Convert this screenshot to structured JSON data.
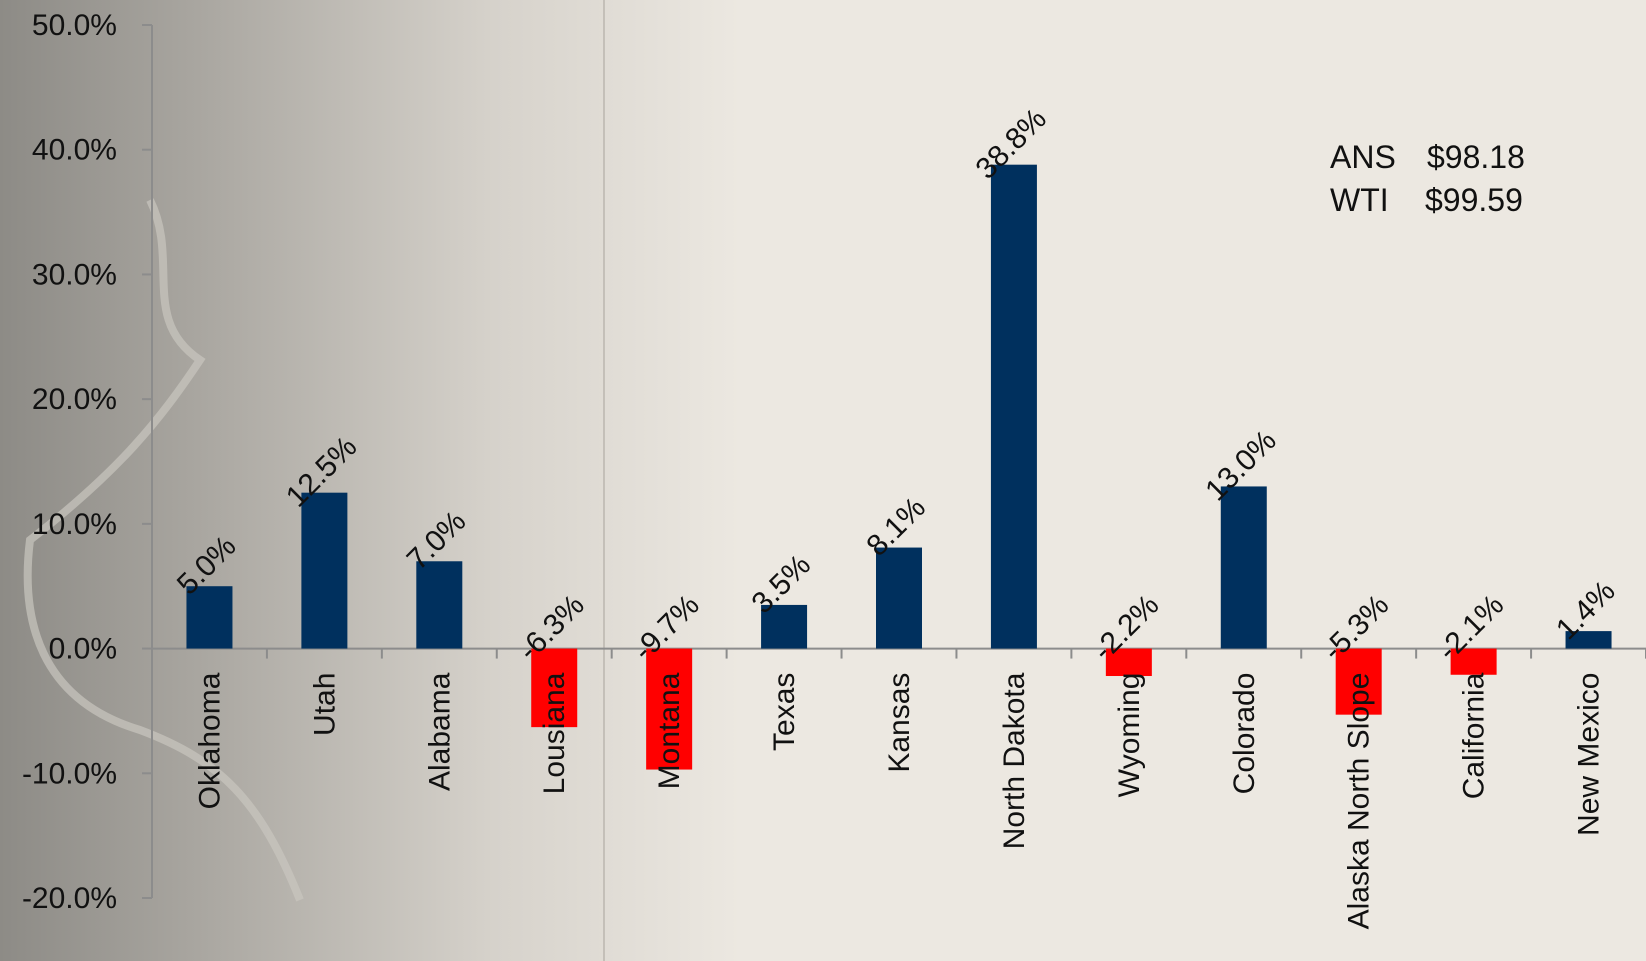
{
  "chart_data": {
    "type": "bar",
    "title": "",
    "xlabel": "",
    "ylabel": "",
    "ylim": [
      -20,
      50
    ],
    "yticks": [
      "50.0%",
      "40.0%",
      "30.0%",
      "20.0%",
      "10.0%",
      "0.0%",
      "-10.0%",
      "-20.0%"
    ],
    "ytick_values": [
      50,
      40,
      30,
      20,
      10,
      0,
      -10,
      -20
    ],
    "categories": [
      "Oklahoma",
      "Utah",
      "Alabama",
      "Lousiana",
      "Montana",
      "Texas",
      "Kansas",
      "North Dakota",
      "Wyoming",
      "Colorado",
      "Alaska North Slope",
      "California",
      "New Mexico"
    ],
    "values": [
      5.0,
      12.5,
      7.0,
      -6.3,
      -9.7,
      3.5,
      8.1,
      38.8,
      -2.2,
      13.0,
      -5.3,
      -2.1,
      1.4
    ],
    "data_labels": [
      "5.0%",
      "12.5%",
      "7.0%",
      "-6.3%",
      "-9.7%",
      "3.5%",
      "8.1%",
      "38.8%",
      "-2.2%",
      "13.0%",
      "-5.3%",
      "-2.1%",
      "1.4%"
    ],
    "grid": false,
    "colors": {
      "positive": "#00305e",
      "negative": "#ff0000",
      "axis": "#8c8c8c"
    }
  },
  "legend": {
    "position": "top-right",
    "rows": [
      {
        "name": "ANS",
        "value": "$98.18"
      },
      {
        "name": "WTI",
        "value": "$99.59"
      }
    ]
  }
}
